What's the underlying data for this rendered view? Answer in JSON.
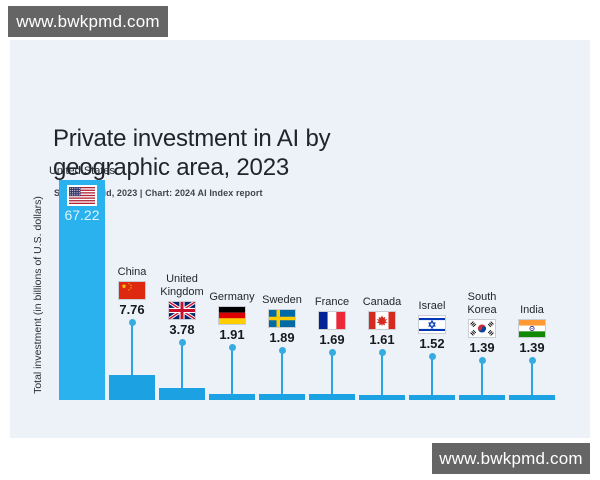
{
  "watermarks": {
    "top_left": "www.bwkpmd.com",
    "bottom_right": "www.bwkpmd.com",
    "bg": "#656565"
  },
  "chart_data": {
    "type": "bar",
    "title": "Private investment in AI by geographic area, 2023",
    "title_lines": [
      "Private investment in AI by",
      "geographic area, 2023"
    ],
    "source_note": "Source: Quid, 2023 | Chart: 2024 AI Index report",
    "ylabel": "Total investment (in billions of U.S. dollars)",
    "xlabel": "",
    "categories": [
      "United States",
      "China",
      "United Kingdom",
      "Germany",
      "Sweden",
      "France",
      "Canada",
      "Israel",
      "South Korea",
      "India"
    ],
    "values": [
      67.22,
      7.76,
      3.78,
      1.91,
      1.89,
      1.69,
      1.61,
      1.52,
      1.39,
      1.39
    ],
    "value_labels": [
      "67.22",
      "7.76",
      "3.78",
      "1.91",
      "1.89",
      "1.69",
      "1.61",
      "1.52",
      "1.39",
      "1.39"
    ],
    "flags": [
      "us",
      "cn",
      "gb",
      "de",
      "se",
      "fr",
      "ca",
      "il",
      "kr",
      "in"
    ],
    "ylim": [
      0,
      67.22
    ],
    "grid": false,
    "legend": false,
    "colors": {
      "bar": "#1ca1e2",
      "us_bar": "#29b2ee",
      "stem": "#28a5e2",
      "dot": "#35acdf",
      "panel_bg": "#edf2f9"
    }
  }
}
